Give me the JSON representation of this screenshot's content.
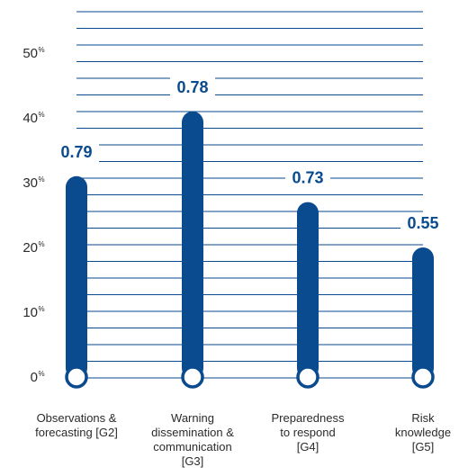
{
  "chart_data": {
    "type": "bar",
    "categories": [
      [
        "Observations &",
        "forecasting [G2]"
      ],
      [
        "Warning",
        "dissemination &",
        "communication",
        "[G3]"
      ],
      [
        "Preparedness",
        "to respond",
        "[G4]"
      ],
      [
        "Risk",
        "knowledge",
        "[G5]"
      ]
    ],
    "values": [
      31,
      41,
      27,
      20
    ],
    "data_labels": [
      "0.79",
      "0.78",
      "0.73",
      "0.55"
    ],
    "ylim": [
      0,
      60
    ],
    "yticks": [
      0,
      10,
      20,
      30,
      40,
      50
    ],
    "ytick_labels": [
      "0",
      "10",
      "20",
      "30",
      "40",
      "50"
    ],
    "ytick_unit": "%",
    "grid": true,
    "legend": "none",
    "colors": {
      "bar": "#0a4a8f",
      "grid": "#0a4a8f",
      "marker_fill": "#ffffff",
      "label": "#0a4a8f"
    }
  }
}
